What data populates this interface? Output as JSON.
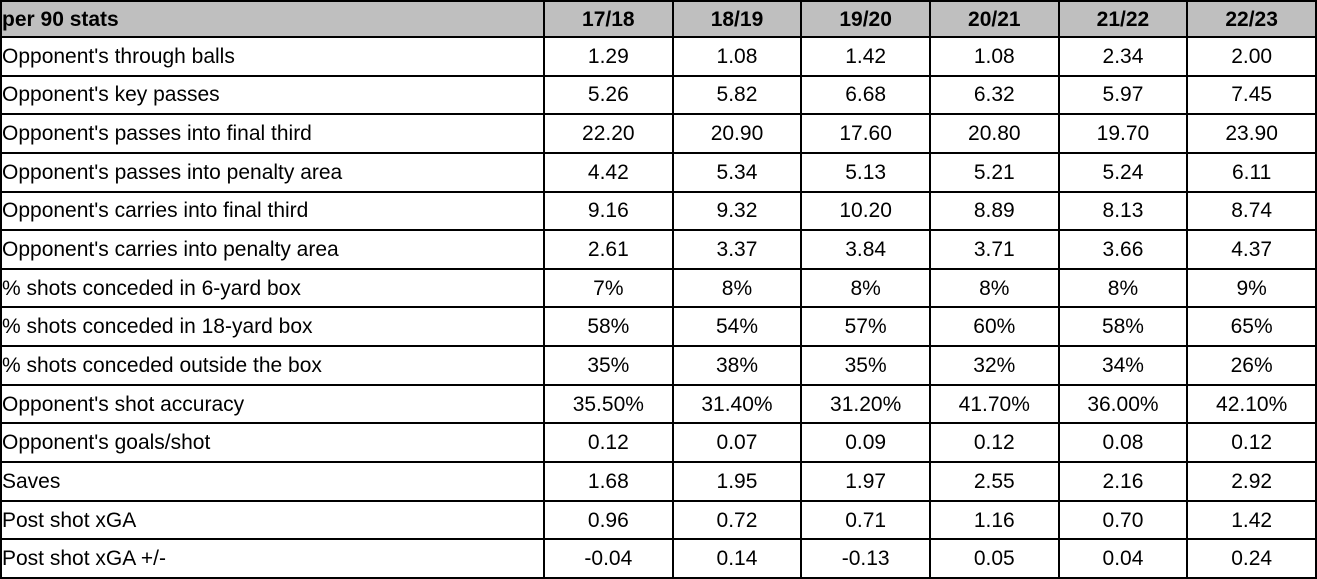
{
  "colors": {
    "header_bg": "#bfbfbf",
    "border": "#000000",
    "text": "#000000",
    "cell_bg": "#ffffff"
  },
  "chart_data": {
    "type": "table",
    "title": "per 90 stats",
    "columns": [
      "17/18",
      "18/19",
      "19/20",
      "20/21",
      "21/22",
      "22/23"
    ],
    "rows": [
      {
        "label": "Opponent's through balls",
        "values": [
          "1.29",
          "1.08",
          "1.42",
          "1.08",
          "2.34",
          "2.00"
        ]
      },
      {
        "label": "Opponent's key passes",
        "values": [
          "5.26",
          "5.82",
          "6.68",
          "6.32",
          "5.97",
          "7.45"
        ]
      },
      {
        "label": "Opponent's passes into final third",
        "values": [
          "22.20",
          "20.90",
          "17.60",
          "20.80",
          "19.70",
          "23.90"
        ]
      },
      {
        "label": "Opponent's passes into penalty area",
        "values": [
          "4.42",
          "5.34",
          "5.13",
          "5.21",
          "5.24",
          "6.11"
        ]
      },
      {
        "label": "Opponent's carries into final third",
        "values": [
          "9.16",
          "9.32",
          "10.20",
          "8.89",
          "8.13",
          "8.74"
        ]
      },
      {
        "label": "Opponent's carries into penalty area",
        "values": [
          "2.61",
          "3.37",
          "3.84",
          "3.71",
          "3.66",
          "4.37"
        ]
      },
      {
        "label": "% shots conceded in 6-yard box",
        "values": [
          "7%",
          "8%",
          "8%",
          "8%",
          "8%",
          "9%"
        ]
      },
      {
        "label": "% shots conceded in 18-yard box",
        "values": [
          "58%",
          "54%",
          "57%",
          "60%",
          "58%",
          "65%"
        ]
      },
      {
        "label": "% shots conceded outside the box",
        "values": [
          "35%",
          "38%",
          "35%",
          "32%",
          "34%",
          "26%"
        ]
      },
      {
        "label": "Opponent's shot accuracy",
        "values": [
          "35.50%",
          "31.40%",
          "31.20%",
          "41.70%",
          "36.00%",
          "42.10%"
        ]
      },
      {
        "label": "Opponent's goals/shot",
        "values": [
          "0.12",
          "0.07",
          "0.09",
          "0.12",
          "0.08",
          "0.12"
        ]
      },
      {
        "label": "Saves",
        "values": [
          "1.68",
          "1.95",
          "1.97",
          "2.55",
          "2.16",
          "2.92"
        ]
      },
      {
        "label": "Post shot xGA",
        "values": [
          "0.96",
          "0.72",
          "0.71",
          "1.16",
          "0.70",
          "1.42"
        ]
      },
      {
        "label": "Post shot xGA +/-",
        "values": [
          "-0.04",
          "0.14",
          "-0.13",
          "0.05",
          "0.04",
          "0.24"
        ]
      }
    ]
  }
}
